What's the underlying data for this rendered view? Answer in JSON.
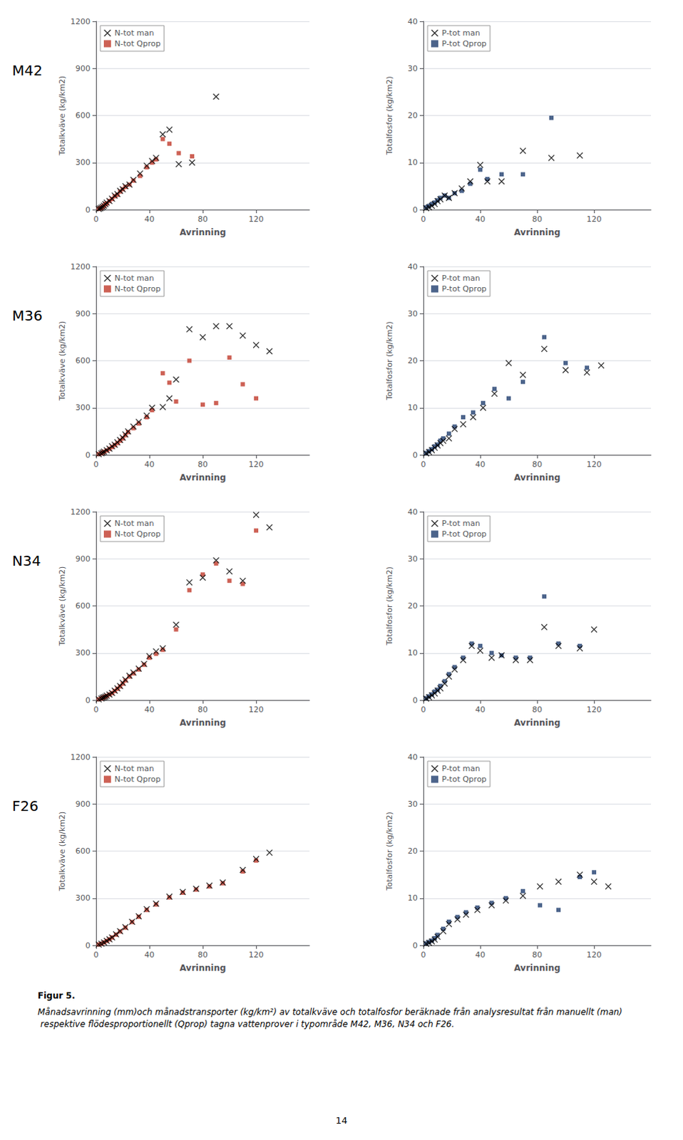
{
  "chart_data": [
    {
      "type": "scatter",
      "title": "M42",
      "xlabel": "Avrinning",
      "ylabel": "Totalkväve (kg/km2)",
      "xlim": [
        0,
        160
      ],
      "ylim": [
        0,
        1200
      ],
      "xticks": [
        0,
        40,
        80,
        120
      ],
      "yticks": [
        0,
        300,
        600,
        900,
        1200
      ],
      "grid": "y",
      "legend": "upper left",
      "series": [
        {
          "name": "N-tot man",
          "color": "#000000",
          "marker": "x",
          "x": [
            2,
            3,
            4,
            5,
            6,
            7,
            8,
            10,
            12,
            14,
            16,
            18,
            20,
            22,
            25,
            28,
            33,
            38,
            42,
            45,
            50,
            55,
            62,
            72,
            90
          ],
          "values": [
            5,
            8,
            12,
            18,
            25,
            35,
            45,
            55,
            70,
            90,
            100,
            120,
            130,
            150,
            160,
            190,
            230,
            280,
            310,
            330,
            480,
            510,
            290,
            300,
            720
          ]
        },
        {
          "name": "N-tot Qprop",
          "color": "#c0392b",
          "marker": "s",
          "x": [
            2,
            3,
            4,
            5,
            6,
            7,
            8,
            10,
            12,
            14,
            16,
            18,
            20,
            22,
            25,
            28,
            33,
            38,
            42,
            45,
            50,
            55,
            62,
            72
          ],
          "values": [
            5,
            8,
            12,
            18,
            25,
            35,
            40,
            55,
            68,
            85,
            95,
            115,
            130,
            145,
            160,
            185,
            215,
            270,
            300,
            320,
            450,
            420,
            360,
            340
          ]
        }
      ]
    },
    {
      "type": "scatter",
      "xlabel": "Avrinning",
      "ylabel": "Totalfosfor (kg/km2)",
      "xlim": [
        0,
        160
      ],
      "ylim": [
        0,
        40
      ],
      "xticks": [
        0,
        40,
        80,
        120
      ],
      "yticks": [
        0,
        10,
        20,
        30,
        40
      ],
      "grid": "y",
      "legend": "upper left",
      "series": [
        {
          "name": "P-tot man",
          "color": "#000000",
          "marker": "x",
          "x": [
            2,
            4,
            6,
            8,
            10,
            12,
            15,
            18,
            22,
            27,
            33,
            40,
            45,
            55,
            70,
            90,
            110
          ],
          "values": [
            0.3,
            0.5,
            0.8,
            1.2,
            1.8,
            2.2,
            3.0,
            2.5,
            3.5,
            4.5,
            6.0,
            9.5,
            6.0,
            6.0,
            12.5,
            11.0,
            11.5
          ]
        },
        {
          "name": "P-tot Qprop",
          "color": "#1f3d6e",
          "marker": "s",
          "x": [
            2,
            4,
            6,
            8,
            10,
            12,
            15,
            18,
            22,
            27,
            33,
            40,
            45,
            55,
            70,
            90
          ],
          "values": [
            0.5,
            0.8,
            1.2,
            1.5,
            2.0,
            2.5,
            3.0,
            2.5,
            3.5,
            4.0,
            5.5,
            8.5,
            6.5,
            7.5,
            7.5,
            19.5
          ]
        }
      ]
    },
    {
      "type": "scatter",
      "title": "M36",
      "xlabel": "Avrinning",
      "ylabel": "Totalkväve (kg/km2)",
      "xlim": [
        0,
        160
      ],
      "ylim": [
        0,
        1200
      ],
      "xticks": [
        0,
        40,
        80,
        120
      ],
      "yticks": [
        0,
        300,
        600,
        900,
        1200
      ],
      "grid": "y",
      "legend": "upper left",
      "series": [
        {
          "name": "N-tot man",
          "color": "#000000",
          "marker": "x",
          "x": [
            2,
            4,
            5,
            6,
            8,
            10,
            12,
            14,
            16,
            18,
            20,
            22,
            24,
            28,
            32,
            38,
            42,
            50,
            55,
            60,
            70,
            80,
            90,
            100,
            110,
            120,
            130
          ],
          "values": [
            5,
            10,
            15,
            20,
            30,
            40,
            55,
            65,
            80,
            95,
            110,
            130,
            150,
            180,
            210,
            250,
            300,
            305,
            360,
            480,
            800,
            750,
            820,
            820,
            760,
            700,
            660
          ]
        },
        {
          "name": "N-tot Qprop",
          "color": "#c0392b",
          "marker": "s",
          "x": [
            2,
            4,
            5,
            6,
            8,
            10,
            12,
            14,
            16,
            18,
            20,
            22,
            24,
            28,
            32,
            38,
            42,
            50,
            55,
            60,
            70,
            80,
            90,
            100,
            110,
            120
          ],
          "values": [
            5,
            10,
            15,
            20,
            28,
            38,
            50,
            62,
            75,
            90,
            105,
            125,
            145,
            170,
            200,
            240,
            285,
            520,
            460,
            340,
            600,
            320,
            330,
            620,
            450,
            360
          ]
        }
      ]
    },
    {
      "type": "scatter",
      "xlabel": "Avrinning",
      "ylabel": "Totalfosfor (kg/km2)",
      "xlim": [
        0,
        160
      ],
      "ylim": [
        0,
        40
      ],
      "xticks": [
        0,
        40,
        80,
        120
      ],
      "yticks": [
        0,
        10,
        20,
        30,
        40
      ],
      "grid": "y",
      "legend": "upper left",
      "series": [
        {
          "name": "P-tot man",
          "color": "#000000",
          "marker": "x",
          "x": [
            2,
            4,
            6,
            8,
            10,
            12,
            14,
            18,
            22,
            28,
            35,
            42,
            50,
            60,
            70,
            85,
            100,
            115,
            125
          ],
          "values": [
            0.3,
            0.6,
            1.0,
            1.5,
            2.0,
            2.5,
            3.0,
            3.5,
            5.5,
            6.5,
            8.0,
            10.0,
            13.0,
            19.5,
            17.0,
            22.5,
            18.0,
            17.5,
            19.0
          ]
        },
        {
          "name": "P-tot Qprop",
          "color": "#1f3d6e",
          "marker": "s",
          "x": [
            2,
            4,
            6,
            8,
            10,
            12,
            14,
            18,
            22,
            28,
            35,
            42,
            50,
            60,
            70,
            85,
            100,
            115
          ],
          "values": [
            0.4,
            0.8,
            1.2,
            1.8,
            2.2,
            3.0,
            3.5,
            4.5,
            6.0,
            8.0,
            9.0,
            11.0,
            14.0,
            12.0,
            15.5,
            25.0,
            19.5,
            18.5
          ]
        }
      ]
    },
    {
      "type": "scatter",
      "title": "N34",
      "xlabel": "Avrinning",
      "ylabel": "Totalkväve (kg/km2)",
      "xlim": [
        0,
        160
      ],
      "ylim": [
        0,
        1200
      ],
      "xticks": [
        0,
        40,
        80,
        120
      ],
      "yticks": [
        0,
        300,
        600,
        900,
        1200
      ],
      "grid": "y",
      "legend": "upper left",
      "series": [
        {
          "name": "N-tot man",
          "color": "#000000",
          "marker": "x",
          "x": [
            2,
            4,
            5,
            6,
            7,
            8,
            10,
            12,
            14,
            16,
            18,
            20,
            22,
            25,
            28,
            32,
            36,
            40,
            45,
            50,
            60,
            70,
            80,
            90,
            100,
            110,
            120,
            130
          ],
          "values": [
            5,
            10,
            15,
            18,
            22,
            28,
            35,
            45,
            60,
            75,
            90,
            110,
            130,
            155,
            175,
            200,
            230,
            280,
            310,
            330,
            480,
            750,
            780,
            890,
            820,
            760,
            1180,
            1100
          ]
        },
        {
          "name": "N-tot Qprop",
          "color": "#c0392b",
          "marker": "s",
          "x": [
            2,
            4,
            5,
            6,
            7,
            8,
            10,
            12,
            14,
            16,
            18,
            20,
            22,
            25,
            28,
            32,
            36,
            40,
            45,
            50,
            60,
            70,
            80,
            90,
            100,
            110,
            120
          ],
          "values": [
            5,
            10,
            14,
            18,
            22,
            27,
            35,
            44,
            58,
            72,
            87,
            105,
            125,
            150,
            170,
            195,
            225,
            270,
            295,
            320,
            450,
            700,
            800,
            870,
            760,
            740,
            1080
          ]
        }
      ]
    },
    {
      "type": "scatter",
      "xlabel": "Avrinning",
      "ylabel": "Totalfosfor (kg/km2)",
      "xlim": [
        0,
        160
      ],
      "ylim": [
        0,
        40
      ],
      "xticks": [
        0,
        40,
        80,
        120
      ],
      "yticks": [
        0,
        10,
        20,
        30,
        40
      ],
      "grid": "y",
      "legend": "upper left",
      "series": [
        {
          "name": "P-tot man",
          "color": "#000000",
          "marker": "x",
          "x": [
            2,
            4,
            6,
            8,
            10,
            12,
            15,
            18,
            22,
            28,
            34,
            40,
            48,
            55,
            65,
            75,
            85,
            95,
            110,
            120
          ],
          "values": [
            0.3,
            0.6,
            1.0,
            1.4,
            2.0,
            2.5,
            3.5,
            5.0,
            6.5,
            8.5,
            11.5,
            10.5,
            9.0,
            9.5,
            8.5,
            8.5,
            15.5,
            11.5,
            11.0,
            15.0
          ]
        },
        {
          "name": "P-tot Qprop",
          "color": "#1f3d6e",
          "marker": "s",
          "x": [
            2,
            4,
            6,
            8,
            10,
            12,
            15,
            18,
            22,
            28,
            34,
            40,
            48,
            55,
            65,
            75,
            85,
            95,
            110
          ],
          "values": [
            0.4,
            0.8,
            1.2,
            1.8,
            2.2,
            3.0,
            4.0,
            5.5,
            7.0,
            9.0,
            12.0,
            11.5,
            10.0,
            9.5,
            9.0,
            9.0,
            22.0,
            12.0,
            11.5
          ]
        }
      ]
    },
    {
      "type": "scatter",
      "title": "F26",
      "xlabel": "Avrinning",
      "ylabel": "Totalkväve (kg/km2)",
      "xlim": [
        0,
        160
      ],
      "ylim": [
        0,
        1200
      ],
      "xticks": [
        0,
        40,
        80,
        120
      ],
      "yticks": [
        0,
        300,
        600,
        900,
        1200
      ],
      "grid": "y",
      "legend": "upper left",
      "series": [
        {
          "name": "N-tot man",
          "color": "#000000",
          "marker": "x",
          "x": [
            2,
            4,
            6,
            8,
            10,
            12,
            15,
            18,
            22,
            27,
            32,
            38,
            45,
            55,
            65,
            75,
            85,
            95,
            110,
            120,
            130
          ],
          "values": [
            5,
            10,
            18,
            28,
            38,
            50,
            70,
            90,
            115,
            150,
            185,
            230,
            265,
            310,
            340,
            360,
            380,
            400,
            480,
            550,
            590
          ]
        },
        {
          "name": "N-tot Qprop",
          "color": "#c0392b",
          "marker": "s",
          "x": [
            2,
            4,
            6,
            8,
            10,
            12,
            15,
            18,
            22,
            27,
            32,
            38,
            45,
            55,
            65,
            75,
            85,
            95,
            110,
            120
          ],
          "values": [
            5,
            10,
            18,
            28,
            38,
            50,
            68,
            88,
            112,
            148,
            182,
            225,
            260,
            305,
            335,
            355,
            375,
            395,
            470,
            540
          ]
        }
      ]
    },
    {
      "type": "scatter",
      "xlabel": "Avrinning",
      "ylabel": "Totalfosfor (kg/km2)",
      "xlim": [
        0,
        160
      ],
      "ylim": [
        0,
        40
      ],
      "xticks": [
        0,
        40,
        80,
        120
      ],
      "yticks": [
        0,
        10,
        20,
        30,
        40
      ],
      "grid": "y",
      "legend": "upper left",
      "series": [
        {
          "name": "P-tot man",
          "color": "#000000",
          "marker": "x",
          "x": [
            2,
            4,
            6,
            8,
            10,
            14,
            18,
            24,
            30,
            38,
            48,
            58,
            70,
            82,
            95,
            110,
            120,
            130
          ],
          "values": [
            0.3,
            0.5,
            0.8,
            1.2,
            1.8,
            3.0,
            4.5,
            5.5,
            6.5,
            7.5,
            8.5,
            9.5,
            10.5,
            12.5,
            13.5,
            15.0,
            13.5,
            12.5
          ]
        },
        {
          "name": "P-tot Qprop",
          "color": "#1f3d6e",
          "marker": "s",
          "x": [
            2,
            4,
            6,
            8,
            10,
            14,
            18,
            24,
            30,
            38,
            48,
            58,
            70,
            82,
            95,
            110,
            120
          ],
          "values": [
            0.4,
            0.7,
            1.0,
            1.5,
            2.2,
            3.5,
            5.0,
            6.0,
            7.0,
            8.0,
            9.0,
            10.0,
            11.5,
            8.5,
            7.5,
            14.5,
            15.5
          ]
        }
      ]
    }
  ],
  "annotations": [
    "Figur 5.",
    "Månadsavrinning (mm)och månadstransporter (kg/km²) av totalkväve och totalfosfor beräknade från analysresultat från manuellt (man) respektive flödesproportionellt (Qprop) tagna vattenprover i typområde M42, M36, N34 och F26.",
    "14"
  ]
}
